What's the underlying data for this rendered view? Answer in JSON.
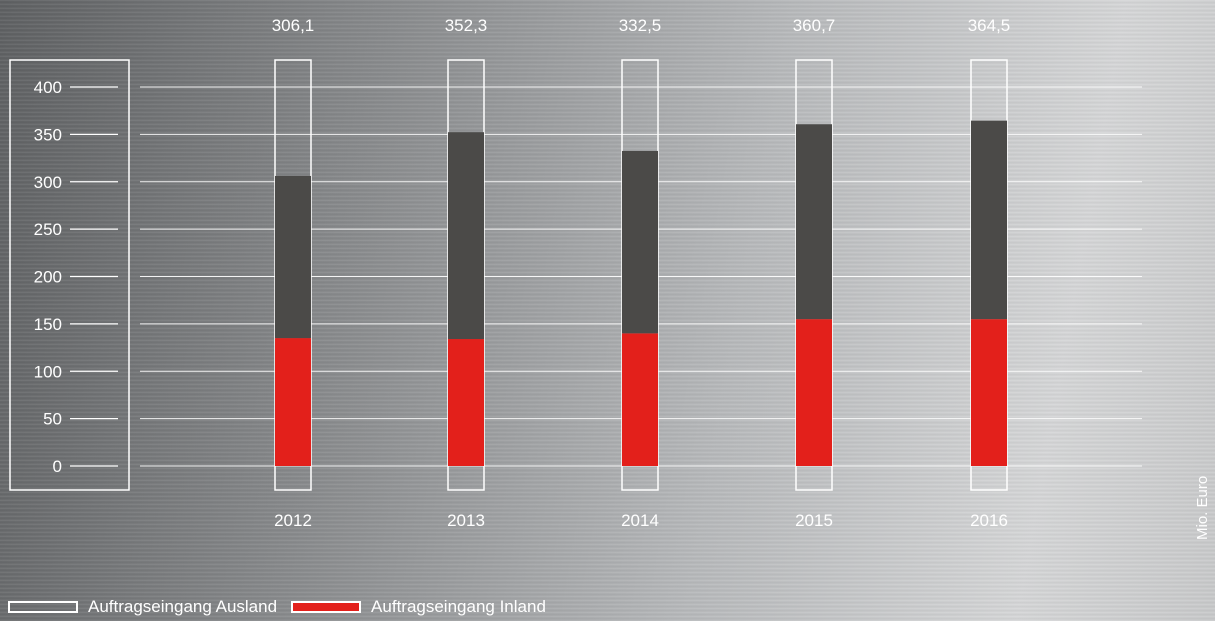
{
  "chart_data": {
    "type": "bar",
    "stacked": true,
    "categories": [
      "2012",
      "2013",
      "2014",
      "2015",
      "2016"
    ],
    "totals_labels": [
      "306,1",
      "352,3",
      "332,5",
      "360,7",
      "364,5"
    ],
    "series": [
      {
        "name": "Auftragseingang Inland",
        "values": [
          135,
          134,
          140,
          155,
          155
        ],
        "color": "#e3201b"
      },
      {
        "name": "Auftragseingang Ausland",
        "values": [
          171.1,
          218.3,
          192.5,
          205.7,
          209.5
        ],
        "color": "#4b4a48"
      }
    ],
    "yticks": [
      "0",
      "50",
      "100",
      "150",
      "200",
      "250",
      "300",
      "350",
      "400"
    ],
    "ylim": [
      0,
      400
    ],
    "unit": "Mio. Euro",
    "grid": true
  },
  "legend": {
    "ausland": "Auftragseingang Ausland",
    "inland": "Auftragseingang Inland"
  },
  "colors": {
    "inland": "#e3201b",
    "ausland": "#4b4a48",
    "ink": "#ffffff"
  }
}
